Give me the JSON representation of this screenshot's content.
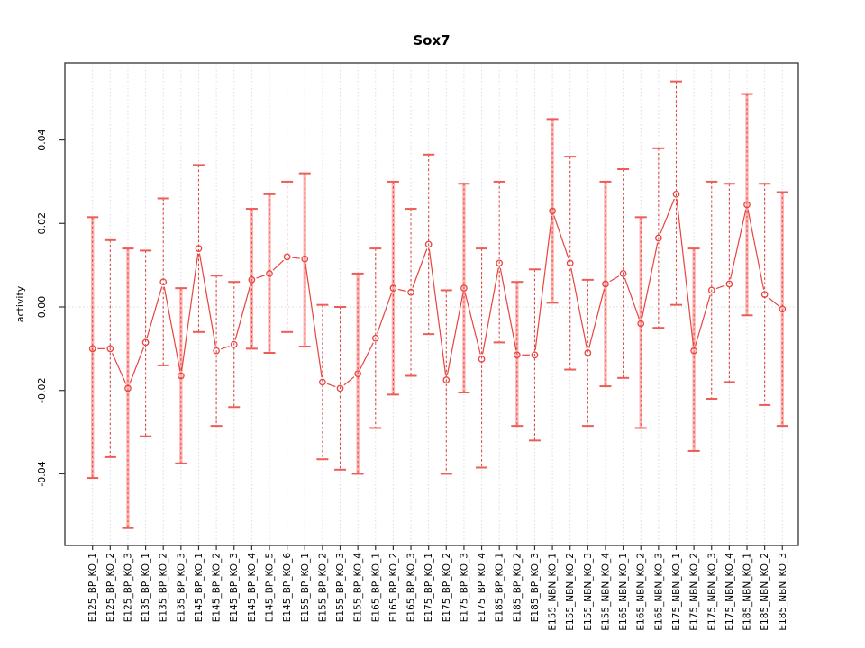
{
  "window": {
    "title": "Sox7"
  },
  "chart_data": {
    "type": "scatter",
    "title": "Sox7",
    "xlabel": "",
    "ylabel": "activity",
    "ylim": [
      -0.057,
      0.0585
    ],
    "yticks": [
      -0.04,
      -0.02,
      0.0,
      0.02,
      0.04
    ],
    "ytick_labels": [
      "-0.04",
      "-0.02",
      "0.00",
      "0.02",
      "0.04"
    ],
    "grid": "vertical dotted gridline at every category; dotted horizontal line at y=0",
    "legend": "none",
    "marker": "open-circle",
    "connected": true,
    "categories": [
      "E125_BP_KO_1",
      "E125_BP_KO_2",
      "E125_BP_KO_3",
      "E135_BP_KO_1",
      "E135_BP_KO_2",
      "E135_BP_KO_3",
      "E145_BP_KO_1",
      "E145_BP_KO_2",
      "E145_BP_KO_3",
      "E145_BP_KO_4",
      "E145_BP_KO_5",
      "E145_BP_KO_6",
      "E155_BP_KO_1",
      "E155_BP_KO_2",
      "E155_BP_KO_3",
      "E155_BP_KO_4",
      "E165_BP_KO_1",
      "E165_BP_KO_2",
      "E165_BP_KO_3",
      "E175_BP_KO_1",
      "E175_BP_KO_2",
      "E175_BP_KO_3",
      "E175_BP_KO_4",
      "E185_BP_KO_1",
      "E185_BP_KO_2",
      "E185_BP_KO_3",
      "E155_NBN_KO_1",
      "E155_NBN_KO_2",
      "E155_NBN_KO_3",
      "E155_NBN_KO_4",
      "E165_NBN_KO_1",
      "E165_NBN_KO_2",
      "E165_NBN_KO_3",
      "E175_NBN_KO_1",
      "E175_NBN_KO_2",
      "E175_NBN_KO_3",
      "E175_NBN_KO_4",
      "E185_NBN_KO_1",
      "E185_NBN_KO_2",
      "E185_NBN_KO_3"
    ],
    "series": [
      {
        "name": "activity",
        "values": [
          -0.01,
          -0.01,
          -0.0195,
          -0.0085,
          0.006,
          -0.0165,
          0.014,
          -0.0105,
          -0.009,
          0.0065,
          0.008,
          0.012,
          0.0115,
          -0.018,
          -0.0195,
          -0.016,
          -0.0075,
          0.0045,
          0.0035,
          0.015,
          -0.0175,
          0.0045,
          -0.0125,
          0.0105,
          -0.0115,
          -0.0115,
          0.023,
          0.0105,
          -0.011,
          0.0055,
          0.008,
          -0.004,
          0.0165,
          0.027,
          -0.0105,
          0.004,
          0.0055,
          0.0245,
          0.003,
          -0.0005
        ],
        "err_high": [
          0.0215,
          0.016,
          0.014,
          0.0135,
          0.026,
          0.0045,
          0.034,
          0.0075,
          0.006,
          0.0235,
          0.027,
          0.03,
          0.032,
          0.0005,
          0.0,
          0.008,
          0.014,
          0.03,
          0.0235,
          0.0365,
          0.004,
          0.0295,
          0.014,
          0.03,
          0.006,
          0.009,
          0.045,
          0.036,
          0.0065,
          0.03,
          0.033,
          0.0215,
          0.038,
          0.054,
          0.014,
          0.03,
          0.0295,
          0.051,
          0.0295,
          0.0275
        ],
        "err_low": [
          -0.041,
          -0.036,
          -0.053,
          -0.031,
          -0.014,
          -0.0375,
          -0.006,
          -0.0285,
          -0.024,
          -0.01,
          -0.011,
          -0.006,
          -0.0095,
          -0.0365,
          -0.039,
          -0.04,
          -0.029,
          -0.021,
          -0.0165,
          -0.0065,
          -0.04,
          -0.0205,
          -0.0385,
          -0.0085,
          -0.0285,
          -0.032,
          0.001,
          -0.015,
          -0.0285,
          -0.019,
          -0.017,
          -0.029,
          -0.005,
          0.0005,
          -0.0345,
          -0.022,
          -0.018,
          -0.002,
          -0.0235,
          -0.0285
        ],
        "bar_styles": [
          "pink",
          "dash",
          "pink",
          "dash",
          "dash",
          "pink",
          "dash",
          "dash",
          "dash",
          "pink",
          "pink",
          "dash",
          "pink",
          "dash",
          "dash",
          "pink",
          "dash",
          "pink",
          "dash",
          "dash",
          "dash",
          "pink",
          "dash",
          "dash",
          "pink",
          "dash",
          "pink",
          "dash",
          "dash",
          "pink",
          "dash",
          "pink",
          "dash",
          "dash",
          "pink",
          "dash",
          "dash",
          "pink",
          "dash",
          "pink"
        ]
      }
    ],
    "colors": {
      "point": "#e8433f",
      "line": "#e8433f",
      "errorbar_stem_pink": "#ffb3b1",
      "errorbar_stem_dash": "#dd4742",
      "errorbar_cap": "#ee5c57",
      "grid": "#dcdcdc",
      "zero_line": "#d8d8d8",
      "frame": "#333333",
      "text": "#000000"
    }
  }
}
